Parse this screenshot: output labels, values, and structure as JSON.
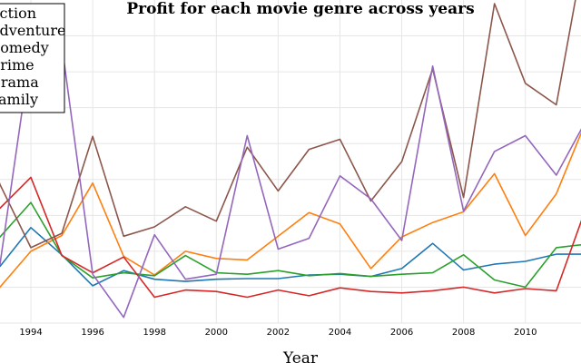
{
  "chart_data": {
    "type": "line",
    "title": "Profit for each movie genre across years",
    "xlabel": "Year",
    "ylabel": "",
    "x": [
      1992,
      1993,
      1994,
      1995,
      1996,
      1997,
      1998,
      1999,
      2000,
      2001,
      2002,
      2003,
      2004,
      2005,
      2006,
      2007,
      2008,
      2009,
      2010,
      2011,
      2012
    ],
    "x_ticks": [
      1994,
      1996,
      1998,
      2000,
      2002,
      2004,
      2006,
      2008,
      2010
    ],
    "xlim": [
      1993,
      2011.8
    ],
    "ylim": [
      0,
      45
    ],
    "grid": true,
    "legend_position": "top-left",
    "series": [
      {
        "name": "Action",
        "color": "#1f77b4",
        "values": [
          8.8,
          7.9,
          13.3,
          9.5,
          5.2,
          7.3,
          6.1,
          5.8,
          6.1,
          6.2,
          6.2,
          6.7,
          6.8,
          6.5,
          7.6,
          11.1,
          7.4,
          8.2,
          8.6,
          9.6,
          9.6
        ]
      },
      {
        "name": "Adventure",
        "color": "#ff7f0e",
        "values": [
          5.3,
          5.0,
          10.0,
          12.2,
          19.5,
          9.3,
          6.7,
          10.0,
          9.0,
          8.8,
          12.1,
          15.4,
          13.8,
          7.6,
          12.0,
          14.0,
          15.5,
          20.8,
          12.2,
          18.0,
          28.5
        ]
      },
      {
        "name": "Comedy",
        "color": "#2ca02c",
        "values": [
          9.0,
          12.0,
          16.8,
          9.4,
          6.3,
          7.0,
          6.6,
          9.4,
          7.0,
          6.8,
          7.3,
          6.6,
          6.9,
          6.5,
          6.8,
          7.0,
          9.5,
          6.0,
          5.0,
          10.5,
          11.0
        ]
      },
      {
        "name": "Crime",
        "color": "#d62728",
        "values": [
          11.0,
          16.0,
          20.3,
          9.4,
          7.0,
          9.2,
          3.6,
          4.6,
          4.4,
          3.6,
          4.6,
          3.8,
          4.9,
          4.4,
          4.2,
          4.5,
          5.0,
          4.2,
          4.8,
          4.5,
          16.5
        ]
      },
      {
        "name": "Drama",
        "color": "#8c564b",
        "values": [
          31.0,
          19.3,
          10.5,
          12.5,
          26.0,
          12.1,
          13.4,
          16.2,
          14.2,
          24.5,
          18.4,
          24.2,
          25.6,
          17.0,
          22.5,
          35.4,
          17.5,
          44.5,
          33.4,
          30.4,
          54.0
        ]
      },
      {
        "name": "Family",
        "color": "#9467bd",
        "values": [
          9.5,
          8.2,
          38.0,
          38.7,
          6.8,
          0.8,
          12.3,
          6.1,
          6.8,
          26.1,
          10.3,
          11.8,
          20.5,
          17.3,
          11.5,
          35.8,
          15.6,
          23.9,
          26.1,
          20.6,
          28.5
        ]
      }
    ]
  }
}
